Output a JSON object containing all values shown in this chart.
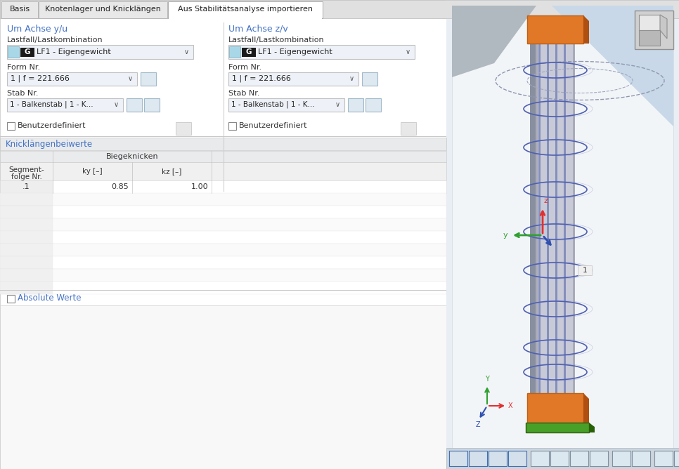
{
  "bg_color": "#f0f0f0",
  "white": "#ffffff",
  "blue_text": "#4472c4",
  "dark_text": "#333333",
  "light_text": "#555555",
  "tab_bg_active": "#ffffff",
  "tab_bg_inactive": "#e4e4e4",
  "tab_border": "#aaaaaa",
  "panel_bg": "#f8f8f8",
  "panel_bg2": "#ffffff",
  "section_line": "#c8c8c8",
  "dropdown_bg": "#eef2f8",
  "dropdown_border": "#c0c0c0",
  "g_box": "#1a1a1a",
  "cyan_box": "#a8d8e8",
  "icon_bg": "#dde8f0",
  "knick_header_bg": "#e8eaec",
  "table_header_bg": "#eaebec",
  "table_subhdr_bg": "#f0f0f0",
  "table_row_bg": "#ffffff",
  "table_col0_bg": "#eeeeee",
  "checkbox_bg": "#ffffff",
  "right_panel_bg": "#e8eef4",
  "right_bg_light": "#f0f4f8",
  "col_gray1": "#9898a8",
  "col_gray2": "#b8b8c8",
  "col_gray3": "#d0d0dc",
  "orange": "#e07828",
  "orange_dark": "#c06010",
  "green_base": "#48a028",
  "ring_color": "#5060b0",
  "ring_color2": "#8090c0",
  "dashed_ring": "#a0aac0",
  "ax_red": "#e03030",
  "ax_green": "#30a030",
  "ax_blue": "#3050b0",
  "tabs": [
    "Basis",
    "Knotenlager und Knicklängen",
    "Aus Stabilitätsanalyse importieren"
  ],
  "active_tab": 2,
  "left_title": "Um Achse y/u",
  "right_title": "Um Achse z/v",
  "lastfall_label": "Lastfall/Lastkombination",
  "lf1_text": "LF1 - Eigengewicht",
  "form_label": "Form Nr.",
  "form_value": "1 | f = 221.666",
  "stab_label": "Stab Nr.",
  "stab_value": "1 - Balkenstab | 1 - K...",
  "benutzer": "Benutzerdefiniert",
  "knick_title": "Knicklängenbeiwerte",
  "seg_header": "Segment-\nfolge Nr.",
  "bieg_header": "Biegeknicken",
  "ky_header": "ky [–]",
  "kz_header": "kz [–]",
  "seg_val": ".1",
  "ky_val": "0.85",
  "kz_val": "1.00",
  "abs_label": "Absolute Werte",
  "toolbar_bg": "#ccd4dc"
}
